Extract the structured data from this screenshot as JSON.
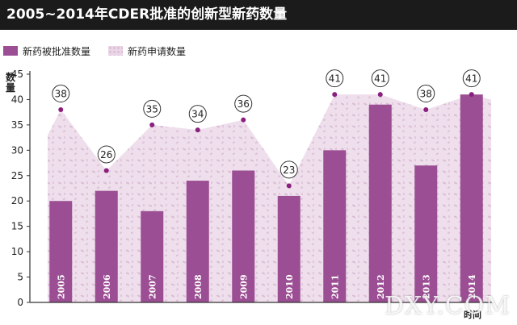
{
  "title": "2005~2014年CDER批准的创新型新药数量",
  "legend": {
    "approved": "新药被批准数量",
    "applied": "新药申请数量"
  },
  "colors": {
    "approved_bar": "#9b4e93",
    "applied_area": "#ecd9e9",
    "applied_dot": "#8a1f7e",
    "axis": "#333333"
  },
  "watermark": "DXY.COM",
  "chart_data": {
    "type": "bar",
    "ylabel": "数量",
    "xlabel": "时间",
    "ylim": [
      0,
      45
    ],
    "yticks": [
      0,
      5,
      10,
      15,
      20,
      25,
      30,
      35,
      40,
      45
    ],
    "categories": [
      "2005",
      "2006",
      "2007",
      "2008",
      "2009",
      "2010",
      "2011",
      "2012",
      "2013",
      "2014"
    ],
    "series": [
      {
        "name": "新药被批准数量",
        "type": "bar",
        "values": [
          20,
          22,
          18,
          24,
          26,
          21,
          30,
          39,
          27,
          41
        ]
      },
      {
        "name": "新药申请数量",
        "type": "area",
        "values": [
          38,
          26,
          35,
          34,
          36,
          23,
          41,
          41,
          38,
          41
        ],
        "labels": [
          "38",
          "26",
          "35",
          "34",
          "36",
          "23",
          "41",
          "41",
          "38",
          "41"
        ]
      }
    ],
    "grid": false,
    "legend_position": "top-left"
  }
}
